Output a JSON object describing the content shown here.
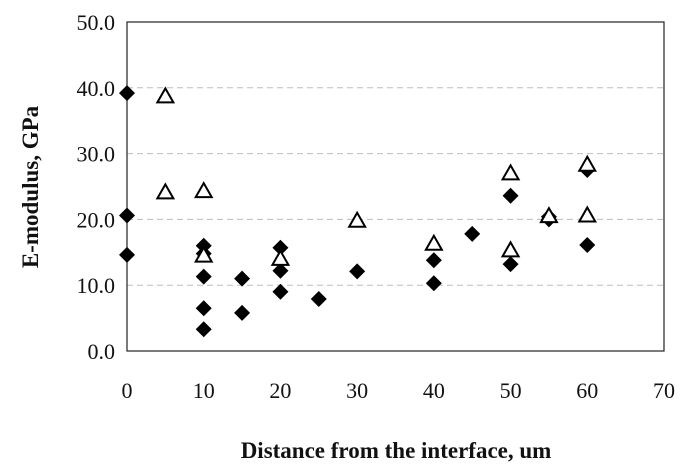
{
  "chart_data": {
    "type": "scatter",
    "title": "",
    "xlabel": "Distance from the interface, um",
    "ylabel": "E-modulus, GPa",
    "xlim": [
      0,
      70
    ],
    "ylim": [
      0,
      50
    ],
    "x_ticks": [
      "0",
      "10",
      "20",
      "30",
      "40",
      "50",
      "60",
      "70"
    ],
    "y_ticks": [
      "0.0",
      "10.0",
      "20.0",
      "30.0",
      "40.0",
      "50.0"
    ],
    "grid": "horizontal dashed",
    "legend": "none",
    "series": [
      {
        "marker": "filled-diamond",
        "color": "#000000",
        "points": [
          [
            0,
            39.2
          ],
          [
            0,
            20.6
          ],
          [
            0,
            14.6
          ],
          [
            10,
            16.0
          ],
          [
            10,
            14.8
          ],
          [
            10,
            11.3
          ],
          [
            10,
            6.5
          ],
          [
            10,
            3.3
          ],
          [
            15,
            11.0
          ],
          [
            15,
            5.8
          ],
          [
            20,
            15.7
          ],
          [
            20,
            12.2
          ],
          [
            20,
            9.0
          ],
          [
            25,
            7.9
          ],
          [
            30,
            12.1
          ],
          [
            40,
            13.8
          ],
          [
            40,
            10.3
          ],
          [
            45,
            17.8
          ],
          [
            50,
            23.6
          ],
          [
            50,
            13.2
          ],
          [
            55,
            20.0
          ],
          [
            55,
            20.4
          ],
          [
            60,
            27.5
          ],
          [
            60,
            16.1
          ]
        ]
      },
      {
        "marker": "open-triangle",
        "color": "#000000",
        "points": [
          [
            5,
            38.7
          ],
          [
            5,
            24.1
          ],
          [
            10,
            24.3
          ],
          [
            10,
            14.5
          ],
          [
            20,
            14.0
          ],
          [
            30,
            19.8
          ],
          [
            40,
            16.3
          ],
          [
            50,
            27.0
          ],
          [
            50,
            15.3
          ],
          [
            55,
            20.5
          ],
          [
            60,
            28.3
          ],
          [
            60,
            20.6
          ]
        ]
      }
    ]
  }
}
